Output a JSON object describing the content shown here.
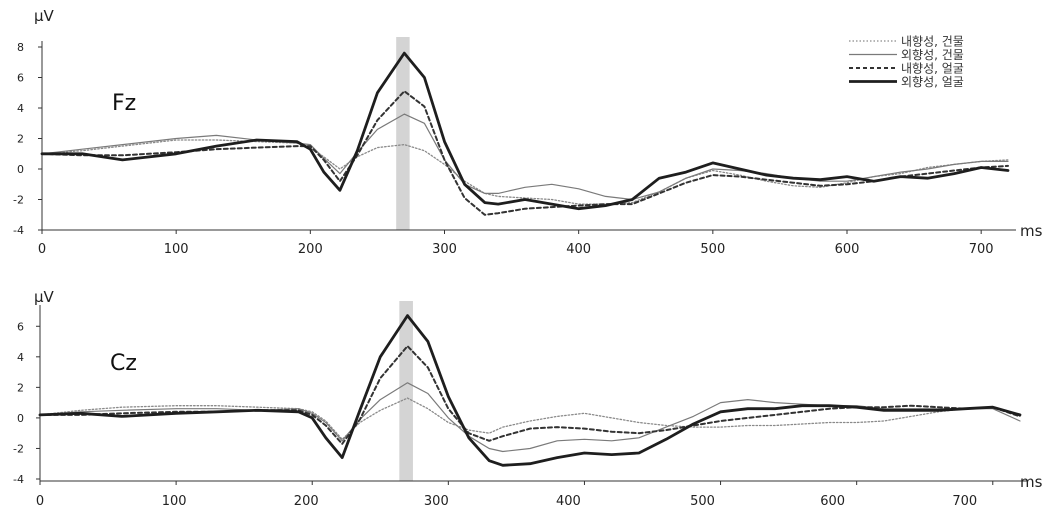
{
  "legend": {
    "items": [
      {
        "label": "내향성, 건물",
        "color": "#8a8a8a",
        "width": 1.3,
        "dash": "1.5,2"
      },
      {
        "label": "외향성, 건물",
        "color": "#7a7a7a",
        "width": 1.2,
        "dash": ""
      },
      {
        "label": "내향성, 얼굴",
        "color": "#333333",
        "width": 2.0,
        "dash": "4,3"
      },
      {
        "label": "외향성, 얼굴",
        "color": "#1e1e1e",
        "width": 2.8,
        "dash": ""
      }
    ]
  },
  "highlight_window_ms": [
    264,
    274
  ],
  "chart_data": [
    {
      "type": "line",
      "panel": "Fz",
      "channel_label": "Fz",
      "ylabel": "μV",
      "xlabel": "ms",
      "xlim": [
        0,
        720
      ],
      "ylim": [
        -4,
        8
      ],
      "x_ticks": [
        0,
        100,
        200,
        300,
        400,
        500,
        600,
        700
      ],
      "y_ticks": [
        -4,
        -2,
        0,
        2,
        4,
        6,
        8
      ],
      "x": [
        0,
        30,
        60,
        100,
        130,
        160,
        190,
        200,
        210,
        222,
        235,
        250,
        270,
        285,
        300,
        315,
        330,
        340,
        360,
        380,
        400,
        420,
        440,
        460,
        480,
        500,
        520,
        540,
        560,
        580,
        600,
        620,
        640,
        660,
        680,
        700,
        720
      ],
      "series": [
        {
          "name": "내향성, 건물",
          "values": [
            1.0,
            1.2,
            1.5,
            1.9,
            1.9,
            1.8,
            1.7,
            1.4,
            0.8,
            0.0,
            0.8,
            1.4,
            1.6,
            1.2,
            0.3,
            -0.8,
            -1.6,
            -1.8,
            -1.9,
            -2.0,
            -2.3,
            -2.3,
            -2.2,
            -1.5,
            -0.6,
            -0.1,
            -0.4,
            -0.8,
            -1.1,
            -1.2,
            -0.9,
            -0.5,
            -0.3,
            0.1,
            0.3,
            0.5,
            0.6
          ]
        },
        {
          "name": "외향성, 건물",
          "values": [
            1.0,
            1.3,
            1.6,
            2.0,
            2.2,
            1.9,
            1.7,
            1.6,
            0.7,
            -0.3,
            1.1,
            2.6,
            3.6,
            3.0,
            0.6,
            -1.0,
            -1.6,
            -1.6,
            -1.2,
            -1.0,
            -1.3,
            -1.8,
            -2.0,
            -1.5,
            -0.6,
            0.0,
            -0.1,
            -0.3,
            -0.6,
            -0.8,
            -0.8,
            -0.5,
            -0.2,
            0.0,
            0.3,
            0.5,
            0.5
          ]
        },
        {
          "name": "내향성, 얼굴",
          "values": [
            1.0,
            0.9,
            0.9,
            1.1,
            1.3,
            1.4,
            1.5,
            1.5,
            0.6,
            -0.8,
            0.9,
            3.2,
            5.1,
            4.1,
            0.6,
            -1.9,
            -3.0,
            -2.9,
            -2.6,
            -2.5,
            -2.4,
            -2.3,
            -2.3,
            -1.6,
            -0.9,
            -0.4,
            -0.5,
            -0.7,
            -0.9,
            -1.1,
            -1.0,
            -0.8,
            -0.5,
            -0.3,
            -0.1,
            0.1,
            0.2
          ]
        },
        {
          "name": "외향성, 얼굴",
          "values": [
            1.0,
            1.0,
            0.6,
            1.0,
            1.5,
            1.9,
            1.8,
            1.3,
            -0.2,
            -1.4,
            1.2,
            5.0,
            7.6,
            6.0,
            1.8,
            -1.0,
            -2.2,
            -2.3,
            -2.0,
            -2.3,
            -2.6,
            -2.4,
            -2.0,
            -0.6,
            -0.2,
            0.4,
            0.0,
            -0.4,
            -0.6,
            -0.7,
            -0.5,
            -0.8,
            -0.5,
            -0.6,
            -0.3,
            0.1,
            -0.1
          ]
        }
      ]
    },
    {
      "type": "line",
      "panel": "Cz",
      "channel_label": "Cz",
      "ylabel": "μV",
      "xlabel": "ms",
      "xlim": [
        0,
        720
      ],
      "ylim": [
        -4,
        7
      ],
      "x_ticks": [
        0,
        100,
        200,
        300,
        400,
        500,
        600,
        700
      ],
      "y_ticks": [
        -4,
        -2,
        0,
        2,
        4,
        6
      ],
      "x": [
        0,
        30,
        60,
        100,
        130,
        160,
        190,
        200,
        210,
        222,
        235,
        250,
        270,
        285,
        300,
        315,
        330,
        340,
        360,
        380,
        400,
        420,
        440,
        460,
        480,
        500,
        520,
        540,
        560,
        580,
        600,
        620,
        640,
        660,
        680,
        700,
        720
      ],
      "series": [
        {
          "name": "내향성, 건물",
          "values": [
            0.2,
            0.5,
            0.7,
            0.8,
            0.8,
            0.7,
            0.6,
            0.4,
            -0.2,
            -1.4,
            -0.3,
            0.5,
            1.3,
            0.6,
            -0.3,
            -0.8,
            -1.0,
            -0.6,
            -0.2,
            0.1,
            0.3,
            0.0,
            -0.3,
            -0.5,
            -0.6,
            -0.6,
            -0.5,
            -0.5,
            -0.4,
            -0.3,
            -0.3,
            -0.2,
            0.1,
            0.4,
            0.6,
            0.7,
            0.1
          ]
        },
        {
          "name": "외향성, 건물",
          "values": [
            0.2,
            0.4,
            0.5,
            0.6,
            0.6,
            0.5,
            0.6,
            0.3,
            -0.3,
            -1.5,
            -0.1,
            1.2,
            2.3,
            1.6,
            0.0,
            -1.2,
            -2.0,
            -2.2,
            -2.0,
            -1.5,
            -1.4,
            -1.5,
            -1.3,
            -0.6,
            0.1,
            1.0,
            1.2,
            1.0,
            0.9,
            0.8,
            0.8,
            0.6,
            0.6,
            0.6,
            0.6,
            0.6,
            -0.2
          ]
        },
        {
          "name": "내향성, 얼굴",
          "values": [
            0.2,
            0.2,
            0.3,
            0.4,
            0.4,
            0.5,
            0.5,
            0.2,
            -0.5,
            -1.7,
            -0.1,
            2.6,
            4.7,
            3.3,
            0.6,
            -1.0,
            -1.5,
            -1.2,
            -0.7,
            -0.6,
            -0.7,
            -0.9,
            -1.0,
            -0.8,
            -0.5,
            -0.2,
            0.0,
            0.2,
            0.4,
            0.6,
            0.7,
            0.7,
            0.8,
            0.7,
            0.6,
            0.7,
            0.1
          ]
        },
        {
          "name": "외향성, 얼굴",
          "values": [
            0.2,
            0.3,
            0.1,
            0.3,
            0.4,
            0.5,
            0.4,
            0.0,
            -1.3,
            -2.6,
            0.5,
            4.0,
            6.7,
            5.0,
            1.4,
            -1.3,
            -2.8,
            -3.1,
            -3.0,
            -2.6,
            -2.3,
            -2.4,
            -2.3,
            -1.4,
            -0.4,
            0.4,
            0.6,
            0.6,
            0.8,
            0.8,
            0.7,
            0.5,
            0.5,
            0.5,
            0.6,
            0.7,
            0.2
          ]
        }
      ]
    }
  ]
}
